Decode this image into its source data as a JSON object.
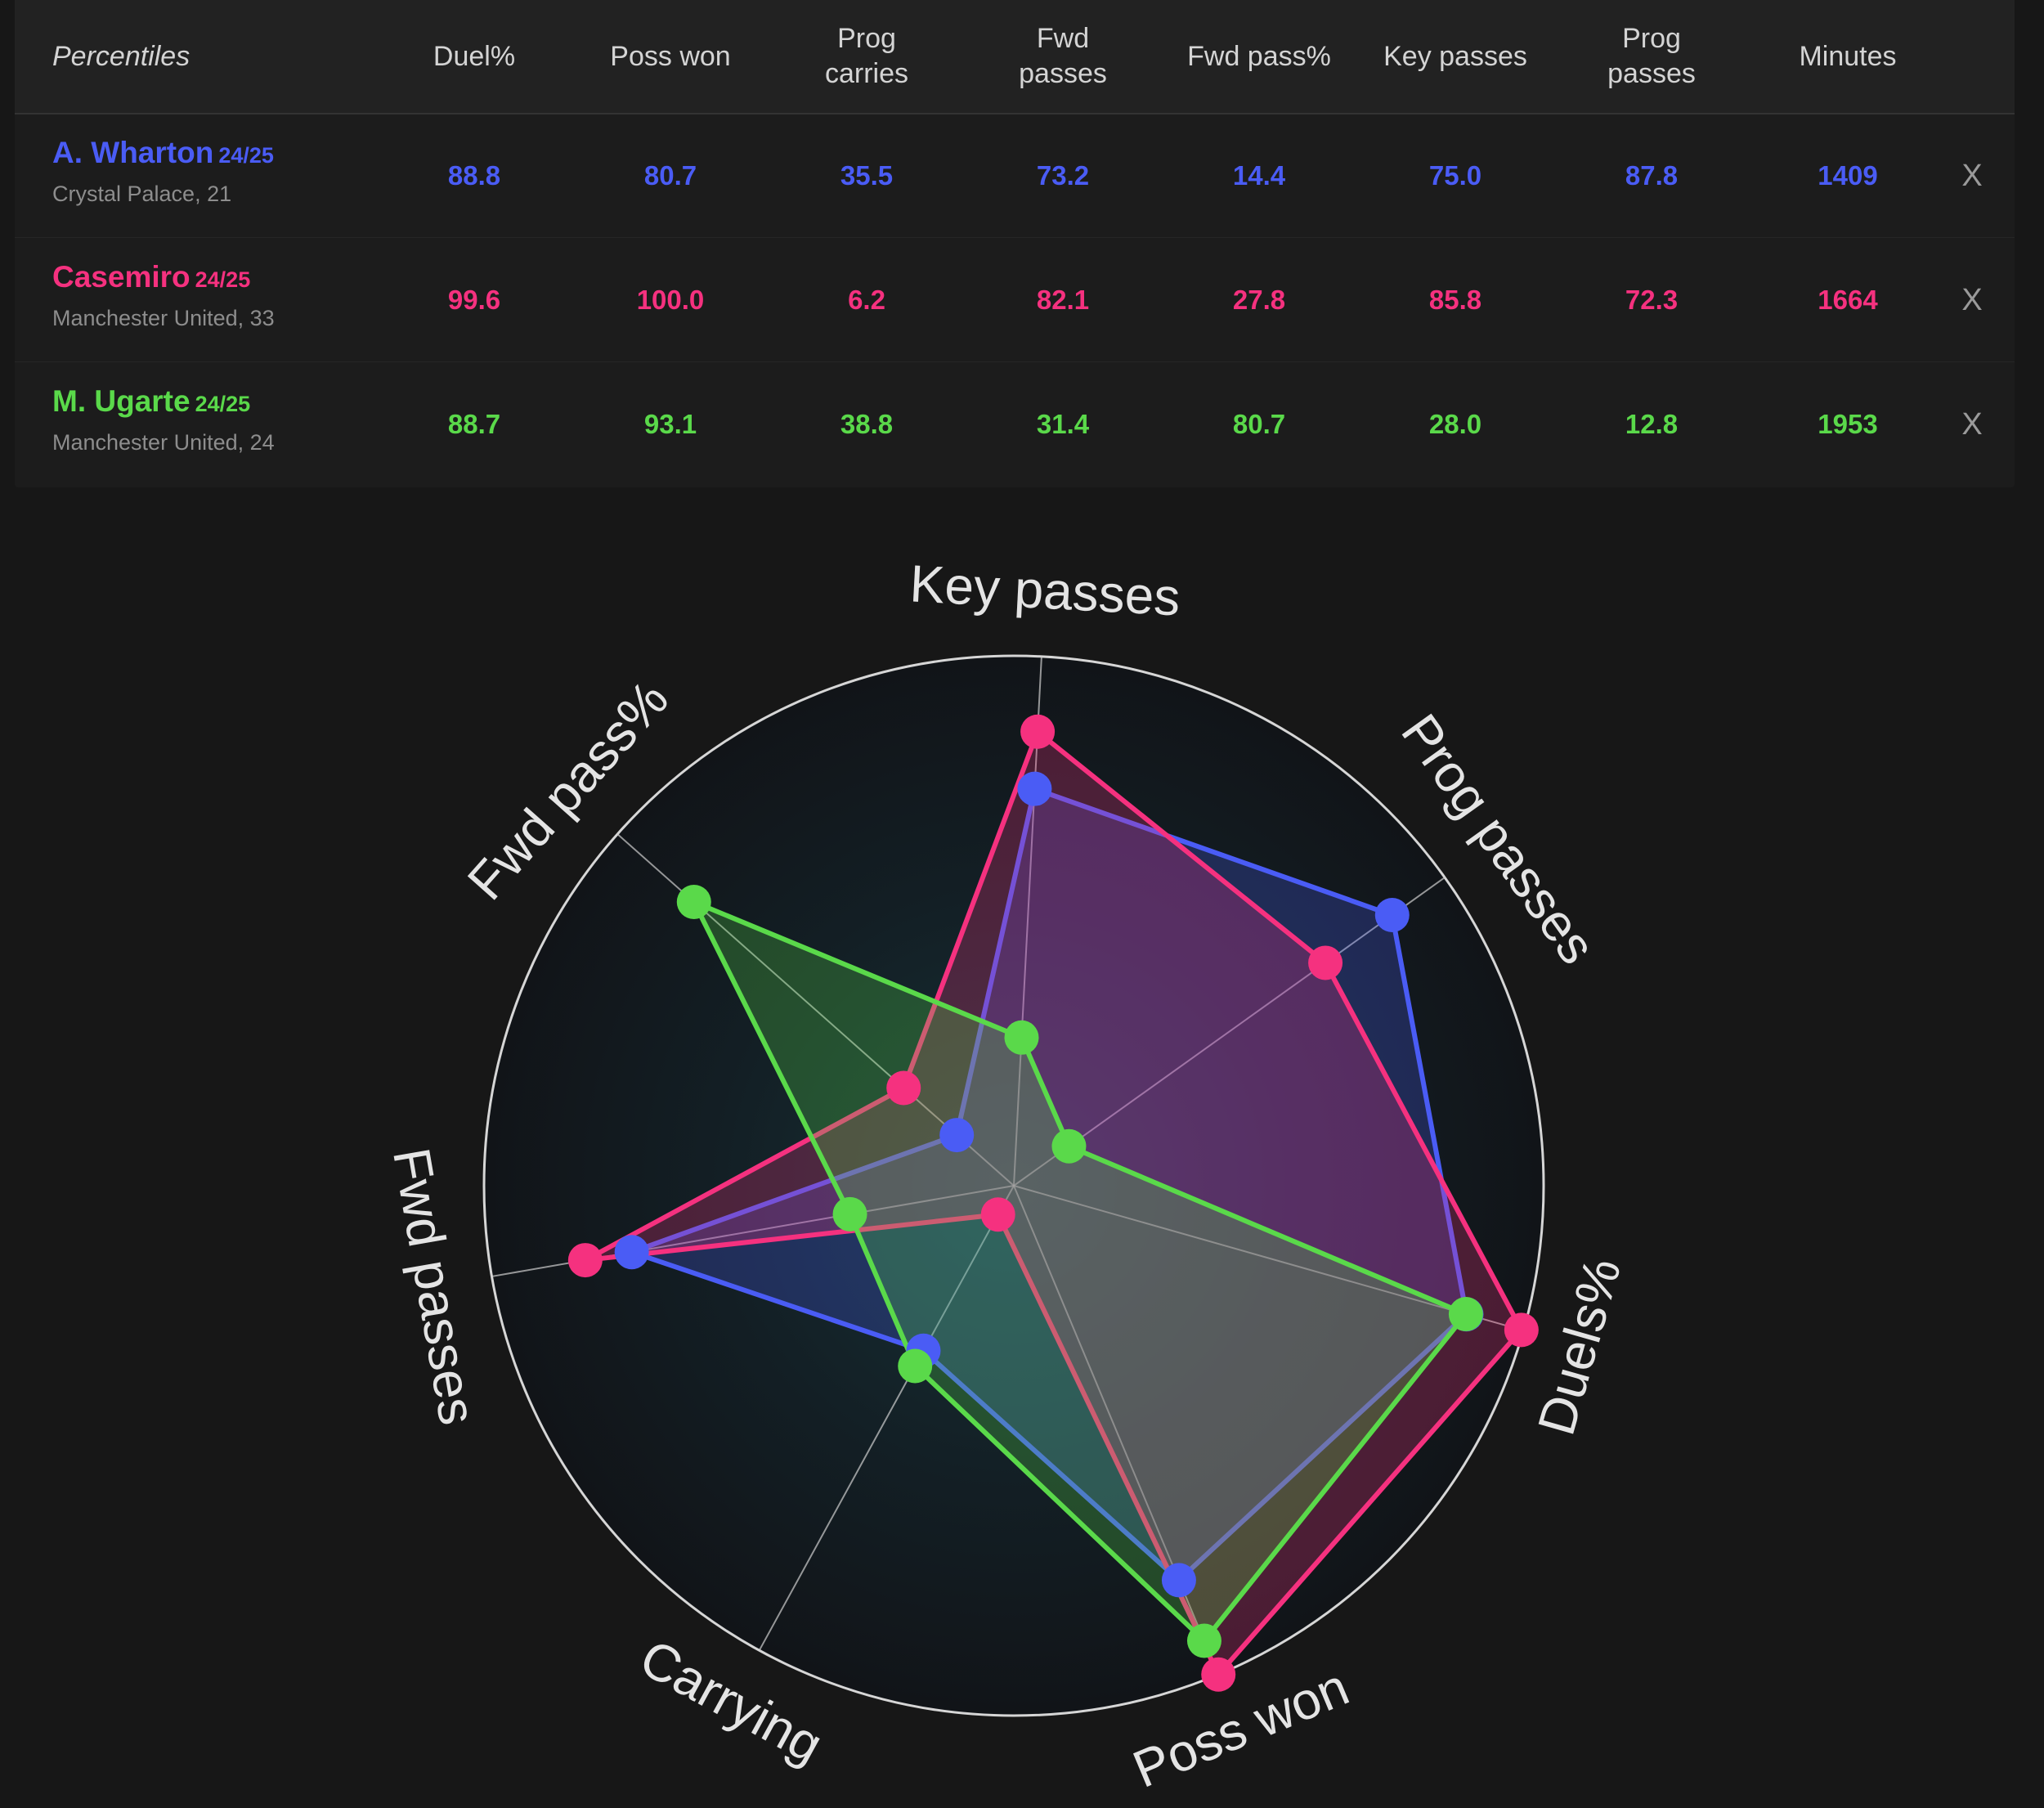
{
  "table": {
    "headers": [
      "Percentiles",
      "Duel%",
      "Poss won",
      "Prog\ncarries",
      "Fwd\npasses",
      "Fwd pass%",
      "Key passes",
      "Prog\npasses",
      "Minutes"
    ],
    "remove_label": "X",
    "players": [
      {
        "name": "A. Wharton",
        "season": "24/25",
        "meta": "Crystal Palace, 21",
        "color": "#4a5cf5",
        "values": [
          "88.8",
          "80.7",
          "35.5",
          "73.2",
          "14.4",
          "75.0",
          "87.8",
          "1409"
        ]
      },
      {
        "name": "Casemiro",
        "season": "24/25",
        "meta": "Manchester United, 33",
        "color": "#f5317f",
        "values": [
          "99.6",
          "100.0",
          "6.2",
          "82.1",
          "27.8",
          "85.8",
          "72.3",
          "1664"
        ]
      },
      {
        "name": "M. Ugarte",
        "season": "24/25",
        "meta": "Manchester United, 24",
        "color": "#5ad94a",
        "values": [
          "88.7",
          "93.1",
          "38.8",
          "31.4",
          "80.7",
          "28.0",
          "12.8",
          "1953"
        ]
      }
    ]
  },
  "chart_data": {
    "type": "radar",
    "axes": [
      "Key passes",
      "Prog passes",
      "Duels%",
      "Poss won",
      "Carrying",
      "Fwd passes",
      "Fwd pass%"
    ],
    "rlim": [
      0,
      100
    ],
    "series": [
      {
        "name": "A. Wharton",
        "color": "#4a5cf5",
        "values": [
          75.0,
          87.8,
          88.8,
          80.7,
          35.5,
          73.2,
          14.4
        ]
      },
      {
        "name": "Casemiro",
        "color": "#f5317f",
        "values": [
          85.8,
          72.3,
          99.6,
          100.0,
          6.2,
          82.1,
          27.8
        ]
      },
      {
        "name": "M. Ugarte",
        "color": "#5ad94a",
        "values": [
          28.0,
          12.8,
          88.7,
          93.1,
          38.8,
          31.4,
          80.7
        ]
      }
    ]
  }
}
